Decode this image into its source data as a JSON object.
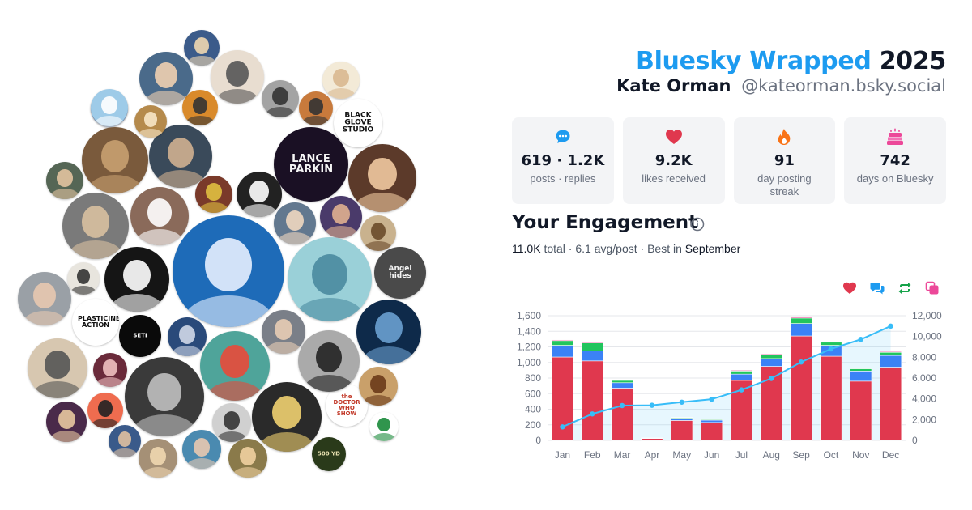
{
  "header": {
    "brand": "Bluesky Wrapped",
    "year": "2025",
    "display_name": "Kate Orman",
    "handle": "@kateorman.bsky.social"
  },
  "stats": [
    {
      "icon": "speech-bubble-icon",
      "value": "619 · 1.2K",
      "label": "posts · replies",
      "color": "#1d9bf0"
    },
    {
      "icon": "heart-icon",
      "value": "9.2K",
      "label": "likes received",
      "color": "#e0384e"
    },
    {
      "icon": "flame-icon",
      "value": "91",
      "label": "day posting streak",
      "color": "#f97316"
    },
    {
      "icon": "cake-icon",
      "value": "742",
      "label": "days on Bluesky",
      "color": "#ec4899"
    }
  ],
  "engagement": {
    "title": "Your Engagement",
    "total": "11.0K",
    "total_word": "total",
    "sep1": " · ",
    "avg": "6.1 avg/post",
    "sep2": " · ",
    "best_prefix": "Best in",
    "best_month": "September"
  },
  "legend_icons": [
    {
      "name": "likes-legend-heart-icon",
      "color": "#e0384e"
    },
    {
      "name": "replies-legend-bubble-icon",
      "color": "#1d9bf0"
    },
    {
      "name": "reposts-legend-repost-icon",
      "color": "#16a34a"
    },
    {
      "name": "quotes-legend-quote-icon",
      "color": "#ec4899"
    }
  ],
  "chart_data": {
    "type": "bar",
    "stacked": true,
    "categories": [
      "Jan",
      "Feb",
      "Mar",
      "Apr",
      "May",
      "Jun",
      "Jul",
      "Aug",
      "Sep",
      "Oct",
      "Nov",
      "Dec"
    ],
    "series": [
      {
        "color": "#e0384e",
        "values": [
          1070,
          1020,
          670,
          25,
          255,
          230,
          770,
          950,
          1340,
          1080,
          760,
          940
        ]
      },
      {
        "color": "#3b82f6",
        "values": [
          150,
          130,
          70,
          5,
          25,
          30,
          80,
          100,
          160,
          140,
          130,
          150
        ]
      },
      {
        "color": "#22c55e",
        "values": [
          60,
          100,
          30,
          3,
          10,
          10,
          40,
          50,
          70,
          40,
          30,
          40
        ]
      },
      {
        "color": "#ec4899",
        "values": [
          10,
          10,
          5,
          0,
          5,
          5,
          10,
          10,
          15,
          10,
          5,
          10
        ]
      }
    ],
    "cumulative": {
      "color": "#38bdf8",
      "values": [
        1300,
        2550,
        3350,
        3380,
        3680,
        3960,
        4860,
        5960,
        7540,
        8800,
        9720,
        11000
      ]
    },
    "y_left": {
      "min": 0,
      "max": 1600,
      "ticks": [
        0,
        200,
        400,
        600,
        800,
        1000,
        1200,
        1400,
        1600
      ],
      "tick_labels": [
        "0",
        "200",
        "400",
        "600",
        "800",
        "1,000",
        "1,200",
        "1,400",
        "1,600"
      ]
    },
    "y_right": {
      "min": 0,
      "max": 12000,
      "ticks": [
        0,
        2000,
        4000,
        6000,
        8000,
        10000,
        12000
      ],
      "tick_labels": [
        "0",
        "2,000",
        "4,000",
        "6,000",
        "8,000",
        "10,000",
        "12,000"
      ]
    },
    "grid": true
  },
  "avatars": [
    {
      "label": "",
      "bg": "#3b5b8a",
      "fg": "#f0d7b0"
    },
    {
      "label": "",
      "bg": "#e8ddd0",
      "fg": "#555555"
    },
    {
      "label": "",
      "bg": "#c87a3c",
      "fg": "#333333"
    },
    {
      "label": "",
      "bg": "#7e9cc6",
      "fg": "#ffffff"
    },
    {
      "label": "",
      "bg": "#a3a3a3",
      "fg": "#333333"
    },
    {
      "label": "",
      "bg": "#d98a2b",
      "fg": "#333333"
    },
    {
      "label": "BLACK GLOVE STUDIO",
      "bg": "#ffffff",
      "fg": "#111111"
    },
    {
      "label": "",
      "bg": "#f3ead7",
      "fg": "#d9b890"
    },
    {
      "label": "LANCE PARKIN",
      "bg": "#1a1024",
      "fg": "#f5f5f5"
    },
    {
      "label": "",
      "bg": "#5c3a2a",
      "fg": "#f0c9a0"
    },
    {
      "label": "",
      "bg": "#7a5a3c",
      "fg": "#c8a070"
    },
    {
      "label": "",
      "bg": "#3a4a5a",
      "fg": "#d0b090"
    },
    {
      "label": "",
      "bg": "#4a6a8a",
      "fg": "#f0d0b0"
    },
    {
      "label": "",
      "bg": "#7a3a2a",
      "fg": "#e0c040"
    },
    {
      "label": "",
      "bg": "#222222",
      "fg": "#ffffff"
    },
    {
      "label": "",
      "bg": "#b58a4c",
      "fg": "#f7e6c8"
    },
    {
      "label": "",
      "bg": "#62788f",
      "fg": "#f0d7c0"
    },
    {
      "label": "",
      "bg": "#4a3a6a",
      "fg": "#e0b090"
    },
    {
      "label": "",
      "bg": "#c9b28e",
      "fg": "#6a4a2a"
    },
    {
      "label": "",
      "bg": "#556655",
      "fg": "#e2c3a0"
    },
    {
      "label": "Angel hides",
      "bg": "#4a4a4a",
      "fg": "#f5f5f5"
    },
    {
      "label": "",
      "bg": "#7a7a7a",
      "fg": "#d8c0a0"
    },
    {
      "label": "",
      "bg": "#8a6a5a",
      "fg": "#ffffff"
    },
    {
      "label": "PLASTICINE ACTION",
      "bg": "#ffffff",
      "fg": "#111111"
    },
    {
      "label": "SETI",
      "bg": "#0a0a0a",
      "fg": "#ffffff"
    },
    {
      "label": "",
      "bg": "#2a4a7a",
      "fg": "#d0d8e8"
    },
    {
      "label": "",
      "bg": "#e8e5de",
      "fg": "#333333"
    },
    {
      "label": "",
      "bg": "#9aa0a6",
      "fg": "#e8c8b0"
    },
    {
      "label": "",
      "bg": "#7a7f88",
      "fg": "#e8cdb5"
    },
    {
      "label": "",
      "bg": "#ef6c4f",
      "fg": "#222222"
    },
    {
      "label": "",
      "bg": "#4a2a4a",
      "fg": "#e8c8a0"
    },
    {
      "label": "",
      "bg": "#3a5a8a",
      "fg": "#e0c0a0"
    },
    {
      "label": "the DOCTOR WHO SHOW",
      "bg": "#ffffff",
      "fg": "#c23a2a"
    },
    {
      "label": "",
      "bg": "#ffffff",
      "fg": "#1a8a3a"
    },
    {
      "label": "",
      "bg": "#6a2a3a",
      "fg": "#f0c0c0"
    },
    {
      "label": "",
      "bg": "#a59076",
      "fg": "#f0d7b0"
    },
    {
      "label": "",
      "bg": "#d0d0d0",
      "fg": "#333333"
    },
    {
      "label": "",
      "bg": "#4a8ab0",
      "fg": "#e8c8b0"
    },
    {
      "label": "",
      "bg": "#8a7a4a",
      "fg": "#f0d0a0"
    },
    {
      "label": "500 YD",
      "bg": "#2a3a1a",
      "fg": "#e8e0b0"
    },
    {
      "label": "",
      "bg": "#d7c7b0",
      "fg": "#555555"
    },
    {
      "label": "",
      "bg": "#2a2a2a",
      "fg": "#f0d070"
    },
    {
      "label": "",
      "bg": "#1e6bb8",
      "fg": "#e6f0ff"
    },
    {
      "label": "",
      "bg": "#4fa49a",
      "fg": "#e84a3a"
    },
    {
      "label": "",
      "bg": "#3a3a3a",
      "fg": "#c0c0c0"
    },
    {
      "label": "",
      "bg": "#9ad0d8",
      "fg": "#4a8aa0"
    },
    {
      "label": "",
      "bg": "#151515",
      "fg": "#ffffff"
    },
    {
      "label": "",
      "bg": "#9ecbe8",
      "fg": "#ffffff"
    },
    {
      "label": "",
      "bg": "#0e2a4a",
      "fg": "#6aa0d0"
    },
    {
      "label": "",
      "bg": "#c9a06a",
      "fg": "#6a3a1a"
    },
    {
      "label": "",
      "bg": "#aaaaaa",
      "fg": "#222222"
    }
  ]
}
